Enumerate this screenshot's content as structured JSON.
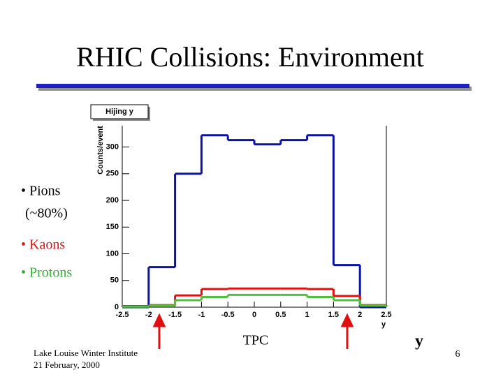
{
  "slide": {
    "title": "RHIC Collisions: Environment",
    "footer": [
      "Lake Louise Winter Institute",
      "21 February, 2000"
    ],
    "detector": "TPC",
    "rapidity": "y",
    "page": "6"
  },
  "chart_data": {
    "type": "histogram",
    "title": "Hijing y",
    "xlabel": "y",
    "ylabel": "Counts/event",
    "bins": [
      -2.5,
      -2,
      -1.5,
      -1,
      -0.5,
      0,
      0.5,
      1,
      1.5,
      2,
      2.5
    ],
    "series": [
      {
        "name": "Pions",
        "color": "#0a14a0",
        "label_color": "#000000",
        "values": [
          0,
          75,
          250,
          322,
          313,
          305,
          313,
          322,
          79,
          0
        ]
      },
      {
        "name": "Kaons",
        "color": "#e01010",
        "label_color": "#e01010",
        "values": [
          2,
          4,
          22,
          34,
          35,
          35,
          35,
          34,
          21,
          4
        ]
      },
      {
        "name": "Protons",
        "color": "#50c040",
        "label_color": "#30b030",
        "values": [
          1,
          3,
          13,
          19,
          23,
          23,
          23,
          19,
          13,
          3
        ]
      }
    ],
    "annotations": [
      "(~80%)"
    ],
    "xlim": [
      -2.5,
      2.5
    ],
    "ylim": [
      0,
      340
    ],
    "xticks": [
      -2.5,
      -2,
      -1.5,
      -1,
      -0.5,
      0,
      0.5,
      1,
      1.5,
      2,
      2.5
    ],
    "yticks": [
      0,
      50,
      100,
      150,
      200,
      250,
      300
    ]
  }
}
